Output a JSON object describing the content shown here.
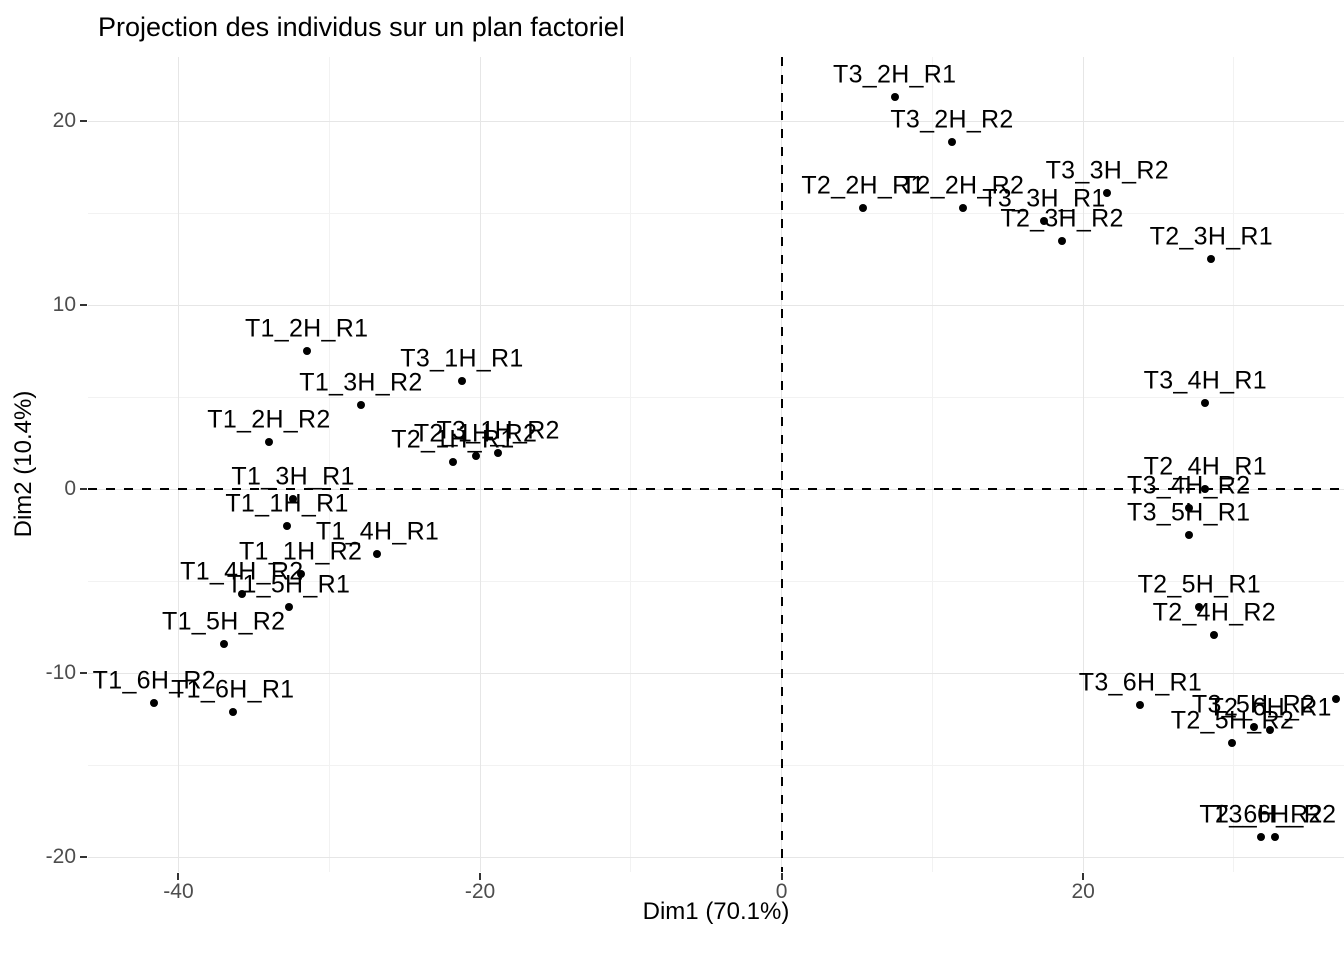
{
  "title": "Projection des individus sur un plan factoriel",
  "chart_data": {
    "type": "scatter",
    "title": "Projection des individus sur un plan factoriel",
    "xlabel": "Dim1 (70.1%)",
    "ylabel": "Dim2 (10.4%)",
    "xlim": [
      -46,
      37.3
    ],
    "ylim": [
      -20.8,
      23.5
    ],
    "x_ticks": [
      -40,
      -20,
      0,
      20
    ],
    "y_ticks": [
      -20,
      -10,
      0,
      10,
      20
    ],
    "x_minor_ticks": [
      -30,
      -10,
      10,
      30
    ],
    "y_minor_ticks": [
      -15,
      -5,
      5,
      15
    ],
    "grid": true,
    "legend": "none",
    "reference_lines": {
      "vertical_x": 0,
      "horizontal_y": 0,
      "style": "dashed",
      "color": "#000000"
    },
    "point_color": "#000000",
    "label_color": "#000000",
    "points": [
      {
        "label": "T1_1H_R1",
        "x": -32.8,
        "y": -2.0
      },
      {
        "label": "T1_1H_R2",
        "x": -31.9,
        "y": -4.6
      },
      {
        "label": "T1_2H_R1",
        "x": -31.5,
        "y": 7.5
      },
      {
        "label": "T1_2H_R2",
        "x": -34.0,
        "y": 2.6
      },
      {
        "label": "T1_3H_R1",
        "x": -32.4,
        "y": -0.5
      },
      {
        "label": "T1_3H_R2",
        "x": -27.9,
        "y": 4.6
      },
      {
        "label": "T1_4H_R1",
        "x": -26.8,
        "y": -3.5
      },
      {
        "label": "T1_4H_R2",
        "x": -35.8,
        "y": -5.7
      },
      {
        "label": "T1_5H_R1",
        "x": -32.7,
        "y": -6.4
      },
      {
        "label": "T1_5H_R2",
        "x": -37.0,
        "y": -8.4
      },
      {
        "label": "T1_6H_R1",
        "x": -36.4,
        "y": -12.1
      },
      {
        "label": "T1_6H_R2",
        "x": -41.6,
        "y": -11.6
      },
      {
        "label": "T2_1H_R1",
        "x": -21.8,
        "y": 1.5
      },
      {
        "label": "T2_1H_R2",
        "x": -20.3,
        "y": 1.8
      },
      {
        "label": "T2_2H_R1",
        "x": 5.4,
        "y": 15.3
      },
      {
        "label": "T2_2H_R2",
        "x": 12.0,
        "y": 15.3
      },
      {
        "label": "T2_3H_R1",
        "x": 28.5,
        "y": 12.5
      },
      {
        "label": "T2_3H_R2",
        "x": 18.6,
        "y": 13.5
      },
      {
        "label": "T2_4H_R1",
        "x": 28.1,
        "y": 0.0
      },
      {
        "label": "T2_4H_R2",
        "x": 28.7,
        "y": -7.9
      },
      {
        "label": "T2_5H_R1",
        "x": 27.7,
        "y": -6.4
      },
      {
        "label": "T2_5H_R2",
        "x": 29.9,
        "y": -13.8
      },
      {
        "label": "T2_6H_R1",
        "x": 32.4,
        "y": -13.1
      },
      {
        "label": "T2_6H_R2",
        "x": 31.8,
        "y": -18.9
      },
      {
        "label": "T3_1H_R1",
        "x": -21.2,
        "y": 5.9
      },
      {
        "label": "T3_1H_R2",
        "x": -18.8,
        "y": 2.0
      },
      {
        "label": "T3_2H_R1",
        "x": 7.5,
        "y": 21.3
      },
      {
        "label": "T3_2H_R2",
        "x": 11.3,
        "y": 18.9
      },
      {
        "label": "T3_3H_R1",
        "x": 17.4,
        "y": 14.6
      },
      {
        "label": "T3_3H_R2",
        "x": 21.6,
        "y": 16.1
      },
      {
        "label": "T3_4H_R1",
        "x": 28.1,
        "y": 4.7
      },
      {
        "label": "T3_4H_R2",
        "x": 27.0,
        "y": -1.0
      },
      {
        "label": "T3_5H_R1",
        "x": 27.0,
        "y": -2.5
      },
      {
        "label": "T3_5H_R2",
        "x": 31.3,
        "y": -12.9
      },
      {
        "label": "T3_6H_R1",
        "x": 23.8,
        "y": -11.7
      },
      {
        "label": "T3_6H_R2",
        "x": 32.7,
        "y": -18.9
      }
    ],
    "extra_points": [
      {
        "x": 36.8,
        "y": -11.4
      }
    ]
  },
  "colors": {
    "background": "#ffffff",
    "grid_major": "#e6e6e6",
    "grid_minor": "#f2f2f2",
    "tick_label": "#4d4d4d",
    "text": "#000000"
  }
}
